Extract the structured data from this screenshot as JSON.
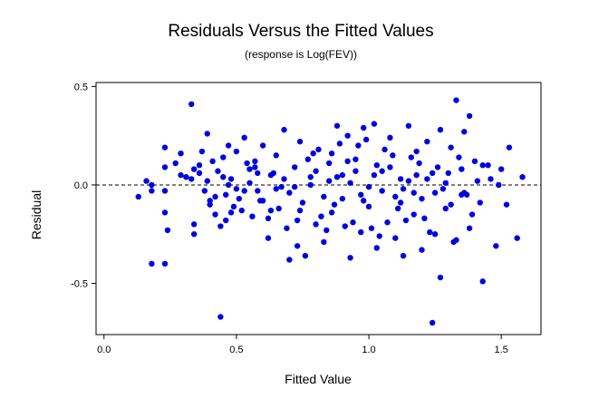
{
  "chart_data": {
    "type": "scatter",
    "title": "Residuals Versus the Fitted Values",
    "subtitle": "(response is Log(FEV))",
    "xlabel": "Fitted Value",
    "ylabel": "Residual",
    "xlim": [
      -0.03,
      1.65
    ],
    "ylim": [
      -0.76,
      0.52
    ],
    "x_ticks": [
      0.0,
      0.5,
      1.0,
      1.5
    ],
    "x_tick_labels": [
      "0.0",
      "0.5",
      "1.0",
      "1.5"
    ],
    "y_ticks": [
      -0.5,
      0.0,
      0.5
    ],
    "y_tick_labels": [
      "-0.5",
      "0.0",
      "0.5"
    ],
    "reference_line": {
      "y": 0.0,
      "style": "dashed"
    },
    "grid": false,
    "point_color": "#0000dd",
    "x": [
      0.13,
      0.16,
      0.18,
      0.18,
      0.23,
      0.23,
      0.23,
      0.23,
      0.24,
      0.27,
      0.29,
      0.29,
      0.31,
      0.33,
      0.34,
      0.34,
      0.34,
      0.36,
      0.37,
      0.38,
      0.39,
      0.39,
      0.4,
      0.41,
      0.42,
      0.43,
      0.44,
      0.45,
      0.46,
      0.46,
      0.47,
      0.48,
      0.49,
      0.5,
      0.51,
      0.53,
      0.55,
      0.56,
      0.57,
      0.58,
      0.6,
      0.62,
      0.63,
      0.65,
      0.66,
      0.68,
      0.7,
      0.72,
      0.73,
      0.74,
      0.76,
      0.78,
      0.8,
      0.81,
      0.83,
      0.85,
      0.86,
      0.88,
      0.9,
      0.92,
      0.93,
      0.95,
      0.97,
      0.98,
      1.0,
      1.02,
      1.03,
      1.05,
      1.07,
      1.08,
      1.1,
      1.12,
      1.13,
      1.15,
      1.17,
      1.18,
      1.2,
      1.22,
      1.24,
      1.25,
      1.27,
      1.29,
      1.31,
      1.32,
      1.33,
      1.35,
      1.36,
      1.38,
      1.4,
      1.43,
      1.45,
      1.48,
      1.5,
      1.53,
      1.56,
      1.58,
      0.44,
      1.24,
      1.27,
      1.43,
      0.33,
      1.33,
      0.23,
      0.18,
      0.93,
      1.13,
      1.38,
      0.65,
      0.78,
      1.05,
      0.85,
      0.97,
      1.02,
      1.17,
      1.22,
      0.72,
      0.88,
      1.1,
      1.3,
      0.6,
      0.7,
      0.83,
      0.95,
      1.08,
      1.2,
      0.5,
      0.55,
      0.68,
      0.75,
      0.9,
      1.0,
      1.15,
      1.25,
      1.35,
      0.42,
      0.47,
      0.53,
      0.58,
      0.63,
      0.8,
      0.87,
      0.92,
      0.98,
      1.03,
      1.12,
      1.18,
      1.28,
      1.34,
      1.37,
      1.41,
      0.36,
      0.4,
      0.45,
      0.52,
      0.57,
      0.62,
      0.67,
      0.73,
      0.77,
      0.82,
      0.86,
      0.91,
      0.96,
      1.01,
      1.06,
      1.11,
      1.16,
      1.21,
      1.26,
      1.31,
      1.39,
      1.46,
      1.52,
      0.48,
      0.54,
      0.59,
      0.64,
      0.69,
      0.74,
      0.79,
      0.84,
      0.89,
      0.94,
      0.99,
      1.04,
      1.09,
      1.14,
      1.19,
      1.23,
      1.29,
      1.36,
      1.42,
      1.49
    ],
    "y": [
      -0.06,
      0.02,
      -0.4,
      -0.03,
      0.19,
      0.09,
      -0.14,
      -0.4,
      -0.23,
      0.11,
      0.16,
      0.05,
      0.04,
      0.41,
      -0.2,
      -0.25,
      0.08,
      0.06,
      0.17,
      -0.03,
      0.26,
      0.02,
      -0.1,
      0.12,
      -0.15,
      0.07,
      -0.21,
      0.14,
      -0.05,
      -0.18,
      0.2,
      0.03,
      -0.11,
      0.17,
      -0.07,
      0.24,
      0.08,
      -0.16,
      0.12,
      -0.03,
      0.2,
      -0.27,
      0.05,
      0.15,
      -0.12,
      0.28,
      -0.38,
      0.09,
      -0.31,
      0.22,
      -0.36,
      0.04,
      -0.2,
      0.18,
      -0.29,
      0.11,
      -0.14,
      0.3,
      -0.07,
      0.25,
      -0.37,
      0.13,
      -0.24,
      0.29,
      -0.11,
      0.31,
      -0.32,
      0.07,
      -0.19,
      0.24,
      -0.27,
      0.03,
      -0.36,
      0.3,
      -0.15,
      0.17,
      -0.33,
      0.22,
      0.06,
      -0.25,
      0.28,
      -0.12,
      0.19,
      -0.29,
      0.43,
      -0.05,
      0.27,
      -0.22,
      0.12,
      -0.49,
      0.1,
      -0.31,
      0.08,
      0.19,
      -0.27,
      0.04,
      -0.67,
      -0.7,
      -0.47,
      0.1,
      0.03,
      -0.28,
      -0.03,
      0.0,
      0.01,
      -0.02,
      0.35,
      -0.02,
      0.0,
      -0.03,
      0.02,
      -0.05,
      0.05,
      -0.04,
      0.03,
      -0.01,
      0.04,
      -0.06,
      0.06,
      -0.08,
      -0.04,
      -0.06,
      0.07,
      0.09,
      -0.07,
      -0.02,
      0.01,
      0.03,
      -0.09,
      0.05,
      -0.01,
      0.02,
      -0.04,
      0.08,
      -0.06,
      0.0,
      -0.03,
      0.06,
      -0.13,
      0.07,
      -0.1,
      0.12,
      -0.08,
      0.1,
      -0.09,
      0.05,
      -0.02,
      0.14,
      -0.05,
      0.02,
      0.1,
      -0.08,
      0.04,
      -0.13,
      0.09,
      -0.17,
      -0.01,
      -0.18,
      0.13,
      -0.16,
      0.16,
      -0.21,
      0.2,
      -0.22,
      0.18,
      -0.12,
      0.14,
      -0.17,
      0.09,
      -0.1,
      -0.15,
      0.03,
      -0.1,
      -0.14,
      0.11,
      -0.08,
      0.06,
      -0.22,
      -0.13,
      0.16,
      -0.23,
      0.21,
      -0.19,
      0.23,
      -0.26,
      0.15,
      -0.18,
      0.11,
      -0.24,
      0.01,
      -0.04,
      -0.09,
      0.0
    ]
  }
}
